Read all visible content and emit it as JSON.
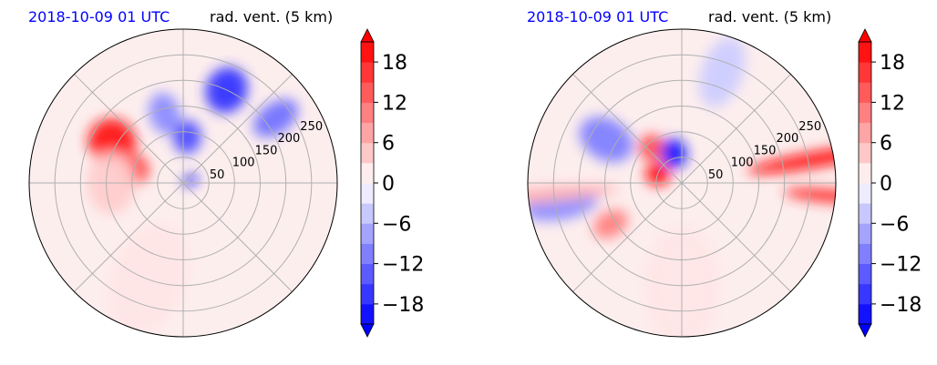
{
  "chart_data": [
    {
      "type": "heatmap",
      "projection": "polar",
      "title_left": "2018-10-09 01 UTC",
      "title_right": "rad. vent. (5 km)",
      "radial_ticks": [
        "50",
        "100",
        "150",
        "200",
        "250"
      ],
      "rlim": [
        0,
        300
      ],
      "grid": true,
      "angular_grid_deg": 45,
      "colorbar": {
        "ticks": [
          "18",
          "12",
          "6",
          "0",
          "−6",
          "−12",
          "−18"
        ],
        "tick_values": [
          18,
          12,
          6,
          0,
          -6,
          -12,
          -18
        ],
        "range": [
          -21,
          21
        ],
        "levels": 14,
        "extend": "both",
        "colors": {
          "negative": "#0000ff",
          "zero": "#ffffff",
          "positive": "#ff0000"
        }
      },
      "features": [
        {
          "sign": "positive",
          "strength": 0.9,
          "az": 300,
          "r": 160,
          "dr": 90,
          "da": 26
        },
        {
          "sign": "positive",
          "strength": 0.75,
          "az": 285,
          "r": 100,
          "dr": 60,
          "da": 22
        },
        {
          "sign": "positive",
          "strength": 0.2,
          "az": 270,
          "r": 140,
          "dr": 120,
          "da": 30
        },
        {
          "sign": "negative",
          "strength": 0.8,
          "az": 25,
          "r": 200,
          "dr": 80,
          "da": 20
        },
        {
          "sign": "negative",
          "strength": 0.55,
          "az": 55,
          "r": 220,
          "dr": 60,
          "da": 20
        },
        {
          "sign": "negative",
          "strength": 0.7,
          "az": 5,
          "r": 90,
          "dr": 55,
          "da": 28
        },
        {
          "sign": "negative",
          "strength": 0.45,
          "az": 345,
          "r": 140,
          "dr": 60,
          "da": 25
        },
        {
          "sign": "negative",
          "strength": 0.9,
          "az": 70,
          "r": 15,
          "dr": 18,
          "da": 40
        },
        {
          "sign": "positive",
          "strength": 0.1,
          "az": 200,
          "r": 200,
          "dr": 150,
          "da": 60
        }
      ]
    },
    {
      "type": "heatmap",
      "projection": "polar",
      "title_left": "2018-10-09 01 UTC",
      "title_right": "rad. vent. (5 km)",
      "radial_ticks": [
        "50",
        "100",
        "150",
        "200",
        "250"
      ],
      "rlim": [
        0,
        300
      ],
      "grid": true,
      "angular_grid_deg": 45,
      "colorbar": {
        "ticks": [
          "18",
          "12",
          "6",
          "0",
          "−6",
          "−12",
          "−18"
        ],
        "tick_values": [
          18,
          12,
          6,
          0,
          -6,
          -12,
          -18
        ],
        "range": [
          -21,
          21
        ],
        "levels": 14,
        "extend": "both",
        "colors": {
          "negative": "#0000ff",
          "zero": "#ffffff",
          "positive": "#ff0000"
        }
      },
      "features": [
        {
          "sign": "positive",
          "strength": 0.95,
          "az": 80,
          "r": 270,
          "dr": 30,
          "da": 55
        },
        {
          "sign": "positive",
          "strength": 0.85,
          "az": 95,
          "r": 285,
          "dr": 25,
          "da": 30
        },
        {
          "sign": "positive",
          "strength": 0.95,
          "az": 290,
          "r": 50,
          "dr": 45,
          "da": 30
        },
        {
          "sign": "positive",
          "strength": 0.7,
          "az": 320,
          "r": 90,
          "dr": 50,
          "da": 20
        },
        {
          "sign": "positive",
          "strength": 0.5,
          "az": 240,
          "r": 160,
          "dr": 50,
          "da": 18
        },
        {
          "sign": "negative",
          "strength": 0.9,
          "az": 345,
          "r": 60,
          "dr": 50,
          "da": 35
        },
        {
          "sign": "negative",
          "strength": 0.5,
          "az": 300,
          "r": 170,
          "dr": 80,
          "da": 30
        },
        {
          "sign": "negative",
          "strength": 0.45,
          "az": 260,
          "r": 240,
          "dr": 60,
          "da": 30
        },
        {
          "sign": "positive",
          "strength": 0.3,
          "az": 265,
          "r": 280,
          "dr": 30,
          "da": 60
        },
        {
          "sign": "negative",
          "strength": 0.2,
          "az": 20,
          "r": 230,
          "dr": 80,
          "da": 30
        },
        {
          "sign": "positive",
          "strength": 0.1,
          "az": 180,
          "r": 200,
          "dr": 150,
          "da": 60
        }
      ]
    }
  ]
}
